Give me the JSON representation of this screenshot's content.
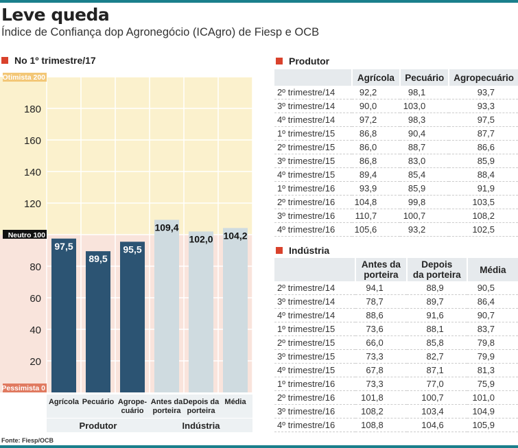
{
  "header": {
    "title": "Leve queda",
    "subtitle": "Índice de Confiança dop Agronegócio (ICAgro) de Fiesp e OCB"
  },
  "source": "Fonte: Fiesp/OCB",
  "colors": {
    "accent": "#d9422c",
    "teal": "#1a7f8c",
    "produtor_bar": "#2c5473",
    "industria_bar": "#cfdbe0",
    "optimist_bg": "#fbf1cd",
    "pessimist_bg": "#f9e4dc"
  },
  "chart_data": {
    "type": "bar",
    "title": "No 1º trimestre/17",
    "categories": [
      "Agrícola",
      "Pecuário",
      "Agrope-cuário",
      "Antes da porteira",
      "Depois da porteira",
      "Média"
    ],
    "category_lines": [
      [
        "Agrícola"
      ],
      [
        "Pecuário"
      ],
      [
        "Agrope-",
        "cuário"
      ],
      [
        "Antes da",
        "porteira"
      ],
      [
        "Depois da",
        "porteira"
      ],
      [
        "Média"
      ]
    ],
    "groups": [
      {
        "name": "Produtor",
        "categories": 3
      },
      {
        "name": "Indústria",
        "categories": 3
      }
    ],
    "values": [
      97.5,
      89.5,
      95.5,
      109.4,
      102.0,
      104.2
    ],
    "value_labels": [
      "97,5",
      "89,5",
      "95,5",
      "109,4",
      "102,0",
      "104,2"
    ],
    "ylim": [
      0,
      200
    ],
    "yticks": [
      20,
      40,
      60,
      80,
      120,
      140,
      160,
      180
    ],
    "zone_labels": {
      "top": "Otimista 200",
      "middle": "Neutro  100",
      "bottom": "Pessimista 0"
    },
    "grid": true
  },
  "produtor": {
    "heading": "Produtor",
    "columns": [
      "Agrícola",
      "Pecuário",
      "Agropecuário"
    ],
    "rows": [
      [
        "2º trimestre/14",
        "92,2",
        "98,1",
        "93,7"
      ],
      [
        "3º trimestre/14",
        "90,0",
        "103,0",
        "93,3"
      ],
      [
        "4º trimestre/14",
        "97,2",
        "98,3",
        "97,5"
      ],
      [
        "1º trimestre/15",
        "86,8",
        "90,4",
        "87,7"
      ],
      [
        "2º trimestre/15",
        "86,0",
        "88,7",
        "86,6"
      ],
      [
        "3º trimestre/15",
        "86,8",
        "83,0",
        "85,9"
      ],
      [
        "4º trimestre/15",
        "89,4",
        "85,4",
        "88,4"
      ],
      [
        "1º trimestre/16",
        "93,9",
        "85,9",
        "91,9"
      ],
      [
        "2º trimestre/16",
        "104,8",
        "99,8",
        "103,5"
      ],
      [
        "3º trimestre/16",
        "110,7",
        "100,7",
        "108,2"
      ],
      [
        "4º trimestre/16",
        "105,6",
        "93,2",
        "102,5"
      ]
    ]
  },
  "industria": {
    "heading": "Indústria",
    "columns": [
      [
        "Antes da",
        "porteira"
      ],
      [
        "Depois",
        "da porteira"
      ],
      [
        "Média"
      ]
    ],
    "rows": [
      [
        "2º trimestre/14",
        "94,1",
        "88,9",
        "90,5"
      ],
      [
        "3º trimestre/14",
        "78,7",
        "89,7",
        "86,4"
      ],
      [
        "4º trimestre/14",
        "88,6",
        "91,6",
        "90,7"
      ],
      [
        "1º trimestre/15",
        "73,6",
        "88,1",
        "83,7"
      ],
      [
        "2º trimestre/15",
        "66,0",
        "85,8",
        "79,8"
      ],
      [
        "3º trimestre/15",
        "73,3",
        "82,7",
        "79,9"
      ],
      [
        "4º trimestre/15",
        "67,8",
        "87,1",
        "81,3"
      ],
      [
        "1º trimestre/16",
        "73,3",
        "77,0",
        "75,9"
      ],
      [
        "2º trimestre/16",
        "101,8",
        "100,7",
        "101,0"
      ],
      [
        "3º trimestre/16",
        "108,2",
        "103,4",
        "104,9"
      ],
      [
        "4º trimestre/16",
        "108,8",
        "104,6",
        "105,9"
      ]
    ]
  }
}
